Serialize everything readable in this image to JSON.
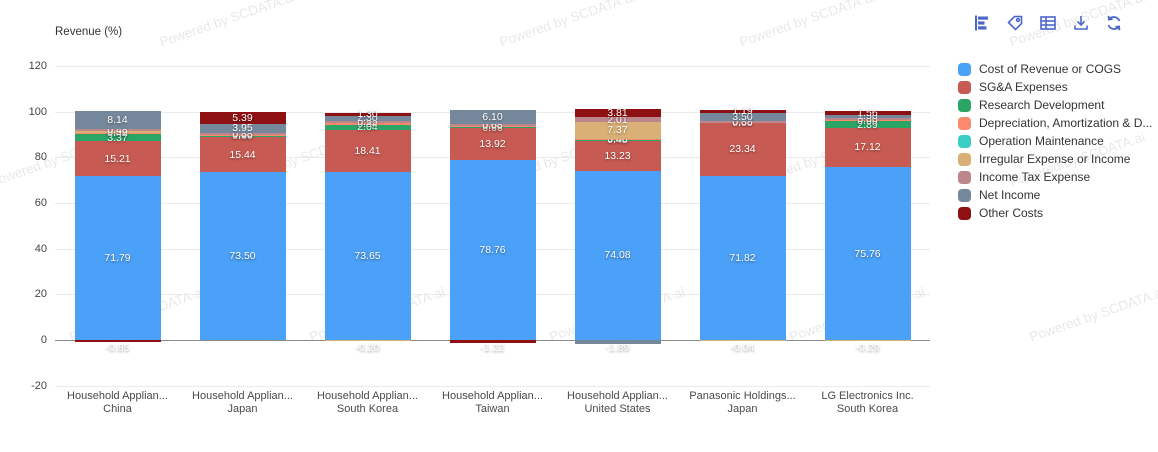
{
  "watermark": {
    "text": "Powered by SCDATA.ai"
  },
  "toolbar": {
    "buttons": [
      {
        "name": "bar-chart",
        "label": "Chart type"
      },
      {
        "name": "tag",
        "label": "Tag"
      },
      {
        "name": "table",
        "label": "Table view"
      },
      {
        "name": "download",
        "label": "Download"
      },
      {
        "name": "refresh",
        "label": "Refresh"
      }
    ]
  },
  "chart_data": {
    "type": "bar",
    "subtype": "stacked-percent",
    "title": "Revenue (%)",
    "ylabel": "Revenue (%)",
    "ylim": [
      -20,
      120
    ],
    "yticks": [
      120,
      100,
      80,
      60,
      40,
      20,
      0,
      -20
    ],
    "grid": true,
    "legend_position": "right",
    "series": [
      {
        "name": "Cost of Revenue or COGS",
        "color": "#4ba0f7"
      },
      {
        "name": "SG&A Expenses",
        "color": "#c75a52"
      },
      {
        "name": "Research Development",
        "color": "#2ba566"
      },
      {
        "name": "Depreciation, Amortization & D...",
        "color": "#fa8a6b"
      },
      {
        "name": "Operation Maintenance",
        "color": "#3acfc4"
      },
      {
        "name": "Irregular Expense or Income",
        "color": "#d9b177"
      },
      {
        "name": "Income Tax Expense",
        "color": "#bd868c"
      },
      {
        "name": "Net Income",
        "color": "#75889b"
      },
      {
        "name": "Other Costs",
        "color": "#8e1012"
      }
    ],
    "bars": [
      {
        "category": [
          "Household Applian...",
          "China"
        ],
        "segments": [
          {
            "series": "Cost of Revenue or COGS",
            "value": 71.79
          },
          {
            "series": "SG&A Expenses",
            "value": 15.21
          },
          {
            "series": "Research Development",
            "value": 3.37
          },
          {
            "series": "Depreciation, Amortization & D...",
            "value": 0.42
          },
          {
            "series": "Irregular Expense or Income",
            "value": 0.95
          },
          {
            "series": "Income Tax Expense",
            "value": 0.48
          },
          {
            "series": "Net Income",
            "value": 8.14
          },
          {
            "series": "Other Costs",
            "value": -0.85
          }
        ]
      },
      {
        "category": [
          "Household Applian...",
          "Japan"
        ],
        "segments": [
          {
            "series": "Cost of Revenue or COGS",
            "value": 73.5
          },
          {
            "series": "SG&A Expenses",
            "value": 15.44
          },
          {
            "series": "Research Development",
            "value": 0.66
          },
          {
            "series": "Depreciation, Amortization & D...",
            "value": 0.18
          },
          {
            "series": "Income Tax Expense",
            "value": 0.88
          },
          {
            "series": "Net Income",
            "value": 3.95
          },
          {
            "series": "Other Costs",
            "value": 5.39
          }
        ]
      },
      {
        "category": [
          "Household Applian...",
          "South Korea"
        ],
        "segments": [
          {
            "series": "Cost of Revenue or COGS",
            "value": 73.65
          },
          {
            "series": "SG&A Expenses",
            "value": 18.41
          },
          {
            "series": "Research Development",
            "value": 2.04
          },
          {
            "series": "Depreciation, Amortization & D...",
            "value": 0.84
          },
          {
            "series": "Income Tax Expense",
            "value": 0.99
          },
          {
            "series": "Net Income",
            "value": 2.3
          },
          {
            "series": "Other Costs",
            "value": 1.3
          },
          {
            "series": "Irregular Expense or Income",
            "value": -0.2
          }
        ]
      },
      {
        "category": [
          "Household Applian...",
          "Taiwan"
        ],
        "segments": [
          {
            "series": "Cost of Revenue or COGS",
            "value": 78.76
          },
          {
            "series": "SG&A Expenses",
            "value": 13.92
          },
          {
            "series": "Research Development",
            "value": 0.66
          },
          {
            "series": "Depreciation, Amortization & D...",
            "value": 0.6
          },
          {
            "series": "Income Tax Expense",
            "value": 0.68
          },
          {
            "series": "Net Income",
            "value": 6.1
          },
          {
            "series": "Other Costs",
            "value": -1.22
          }
        ]
      },
      {
        "category": [
          "Household Applian...",
          "United States"
        ],
        "segments": [
          {
            "series": "Cost of Revenue or COGS",
            "value": 74.08
          },
          {
            "series": "SG&A Expenses",
            "value": 13.23
          },
          {
            "series": "Research Development",
            "value": 0.48
          },
          {
            "series": "Depreciation, Amortization & D...",
            "value": 0.4
          },
          {
            "series": "Irregular Expense or Income",
            "value": 7.37
          },
          {
            "series": "Income Tax Expense",
            "value": 2.01
          },
          {
            "series": "Other Costs",
            "value": 3.81
          },
          {
            "series": "Net Income",
            "value": -1.89
          }
        ]
      },
      {
        "category": [
          "Panasonic Holdings...",
          "Japan"
        ],
        "segments": [
          {
            "series": "Cost of Revenue or COGS",
            "value": 71.82
          },
          {
            "series": "SG&A Expenses",
            "value": 23.34
          },
          {
            "series": "Research Development",
            "value": 0.0
          },
          {
            "series": "Income Tax Expense",
            "value": 0.88
          },
          {
            "series": "Net Income",
            "value": 3.5
          },
          {
            "series": "Other Costs",
            "value": 1.19
          },
          {
            "series": "Irregular Expense or Income",
            "value": -0.04
          }
        ]
      },
      {
        "category": [
          "LG Electronics Inc.",
          "South Korea"
        ],
        "segments": [
          {
            "series": "Cost of Revenue or COGS",
            "value": 75.76
          },
          {
            "series": "SG&A Expenses",
            "value": 17.12
          },
          {
            "series": "Research Development",
            "value": 2.89
          },
          {
            "series": "Depreciation, Amortization & D...",
            "value": 0.6
          },
          {
            "series": "Income Tax Expense",
            "value": 0.86
          },
          {
            "series": "Net Income",
            "value": 1.5
          },
          {
            "series": "Other Costs",
            "value": 1.56
          },
          {
            "series": "Irregular Expense or Income",
            "value": -0.29
          }
        ]
      }
    ]
  }
}
